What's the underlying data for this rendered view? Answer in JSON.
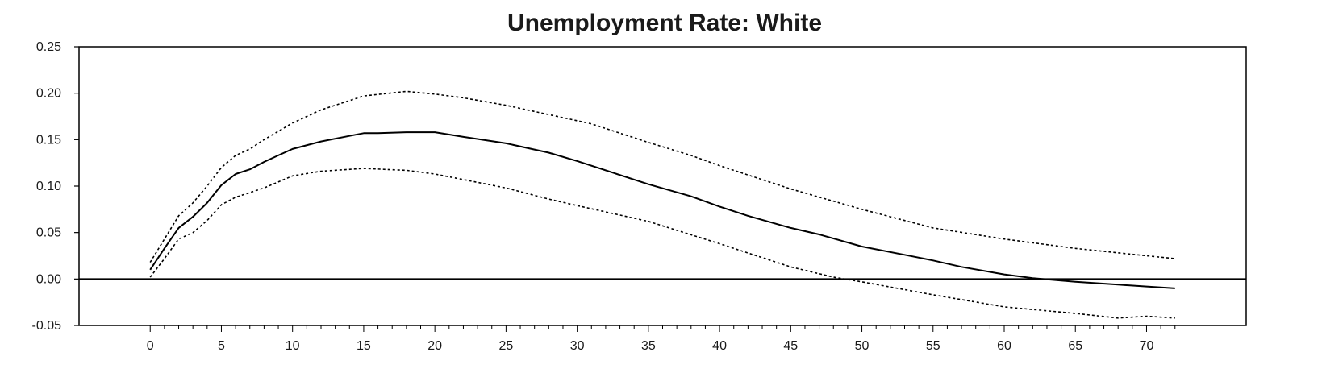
{
  "chart_data": {
    "type": "line",
    "title": "Unemployment Rate: White",
    "xlabel": "",
    "ylabel": "",
    "xlim": [
      -5,
      77
    ],
    "ylim": [
      -0.05,
      0.25
    ],
    "x_ticks": [
      0,
      5,
      10,
      15,
      20,
      25,
      30,
      35,
      40,
      45,
      50,
      55,
      60,
      65,
      70
    ],
    "y_ticks": [
      -0.05,
      0.0,
      0.05,
      0.1,
      0.15,
      0.2,
      0.25
    ],
    "x_tick_labels": [
      "0",
      "5",
      "10",
      "15",
      "20",
      "25",
      "30",
      "35",
      "40",
      "45",
      "50",
      "55",
      "60",
      "65",
      "70"
    ],
    "y_tick_labels": [
      "-0.05",
      "0.00",
      "0.05",
      "0.10",
      "0.15",
      "0.20",
      "0.25"
    ],
    "zero_line": true,
    "grid": false,
    "series": [
      {
        "style": "solid",
        "color": "#000000",
        "x": [
          0,
          1,
          2,
          3,
          4,
          5,
          6,
          7,
          8,
          9,
          10,
          12,
          14,
          15,
          16,
          18,
          20,
          22,
          25,
          28,
          30,
          35,
          38,
          40,
          42,
          45,
          47,
          50,
          53,
          55,
          57,
          60,
          62,
          65,
          68,
          70,
          72
        ],
        "y": [
          0.01,
          0.033,
          0.055,
          0.067,
          0.082,
          0.101,
          0.113,
          0.118,
          0.126,
          0.133,
          0.14,
          0.148,
          0.154,
          0.157,
          0.157,
          0.158,
          0.158,
          0.153,
          0.146,
          0.136,
          0.127,
          0.102,
          0.089,
          0.078,
          0.068,
          0.055,
          0.048,
          0.035,
          0.026,
          0.02,
          0.013,
          0.005,
          0.001,
          -0.003,
          -0.006,
          -0.008,
          -0.01
        ]
      },
      {
        "style": "dotted",
        "color": "#000000",
        "x": [
          0,
          1,
          2,
          3,
          4,
          5,
          6,
          7,
          8,
          10,
          12,
          15,
          18,
          20,
          22,
          25,
          28,
          31,
          35,
          38,
          40,
          45,
          50,
          55,
          60,
          65,
          70,
          72
        ],
        "y": [
          0.018,
          0.043,
          0.068,
          0.082,
          0.1,
          0.12,
          0.133,
          0.14,
          0.15,
          0.168,
          0.182,
          0.197,
          0.202,
          0.199,
          0.195,
          0.187,
          0.177,
          0.167,
          0.147,
          0.133,
          0.122,
          0.097,
          0.075,
          0.055,
          0.043,
          0.033,
          0.025,
          0.022
        ]
      },
      {
        "style": "dotted",
        "color": "#000000",
        "x": [
          0,
          1,
          2,
          3,
          4,
          5,
          6,
          8,
          10,
          12,
          15,
          18,
          20,
          22,
          25,
          28,
          30,
          35,
          40,
          45,
          48,
          50,
          55,
          60,
          65,
          68,
          70,
          72
        ],
        "y": [
          0.002,
          0.022,
          0.043,
          0.05,
          0.063,
          0.08,
          0.088,
          0.098,
          0.111,
          0.116,
          0.119,
          0.117,
          0.113,
          0.107,
          0.098,
          0.086,
          0.079,
          0.062,
          0.038,
          0.013,
          0.002,
          -0.003,
          -0.017,
          -0.03,
          -0.037,
          -0.042,
          -0.04,
          -0.042
        ]
      }
    ]
  }
}
